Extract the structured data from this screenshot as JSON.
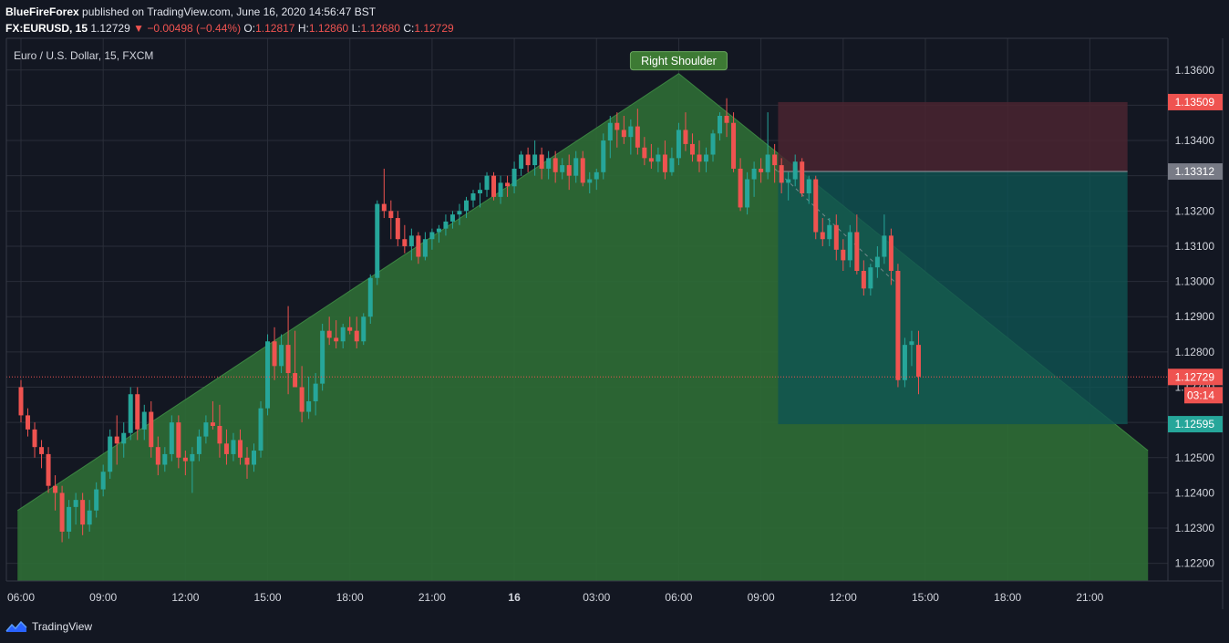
{
  "header": {
    "author": "BlueFireForex",
    "published_text": "published on TradingView.com, June 16, 2020 14:56:47 BST",
    "symbol": "FX:EURUSD, 15",
    "last": "1.12729",
    "change": "▼ −0.00498 (−0.44%)",
    "o_label": "O:",
    "o_value": "1.12817",
    "h_label": "H:",
    "h_value": "1.12860",
    "l_label": "L:",
    "l_value": "1.12680",
    "c_label": "C:",
    "c_value": "1.12729"
  },
  "footer": {
    "brand": "TradingView",
    "logo_icon": "tradingview-logo-icon"
  },
  "colors": {
    "background": "#131722",
    "up": "#26a69a",
    "down": "#ef5350",
    "pattern_fill": "#2e6b35",
    "stop_zone": "#4a2530",
    "target_zone": "#0f5452",
    "grid": "#2a2e39"
  },
  "chart_data": {
    "type": "candlestick",
    "title": "Euro / U.S. Dollar, 15, FXCM",
    "ylim": [
      1.1215,
      1.1369
    ],
    "y_ticks": [
      1.122,
      1.123,
      1.124,
      1.125,
      1.126,
      1.127,
      1.128,
      1.129,
      1.13,
      1.131,
      1.132,
      1.133,
      1.134,
      1.135,
      1.136
    ],
    "x_ticks": [
      {
        "label": "06:00",
        "bar": 0,
        "bold": false
      },
      {
        "label": "09:00",
        "bar": 12,
        "bold": false
      },
      {
        "label": "12:00",
        "bar": 24,
        "bold": false
      },
      {
        "label": "15:00",
        "bar": 36,
        "bold": false
      },
      {
        "label": "18:00",
        "bar": 48,
        "bold": false
      },
      {
        "label": "21:00",
        "bar": 60,
        "bold": false
      },
      {
        "label": "16",
        "bar": 72,
        "bold": true
      },
      {
        "label": "03:00",
        "bar": 84,
        "bold": false
      },
      {
        "label": "06:00",
        "bar": 96,
        "bold": false
      },
      {
        "label": "09:00",
        "bar": 108,
        "bold": false
      },
      {
        "label": "12:00",
        "bar": 120,
        "bold": false
      },
      {
        "label": "15:00",
        "bar": 132,
        "bold": false
      },
      {
        "label": "18:00",
        "bar": 144,
        "bold": false
      },
      {
        "label": "21:00",
        "bar": 156,
        "bold": false
      }
    ],
    "candles": [
      [
        1.127,
        1.1272,
        1.126,
        1.1262
      ],
      [
        1.1262,
        1.1264,
        1.1256,
        1.1258
      ],
      [
        1.1258,
        1.126,
        1.125,
        1.1253
      ],
      [
        1.1253,
        1.1255,
        1.1247,
        1.1251
      ],
      [
        1.1251,
        1.1253,
        1.124,
        1.1242
      ],
      [
        1.1242,
        1.1245,
        1.1235,
        1.124
      ],
      [
        1.124,
        1.1242,
        1.1226,
        1.1229
      ],
      [
        1.1229,
        1.1238,
        1.1227,
        1.1236
      ],
      [
        1.1236,
        1.124,
        1.1231,
        1.1238
      ],
      [
        1.1238,
        1.124,
        1.1228,
        1.1231
      ],
      [
        1.1231,
        1.1238,
        1.1229,
        1.1235
      ],
      [
        1.1235,
        1.1243,
        1.1233,
        1.1241
      ],
      [
        1.1241,
        1.1248,
        1.1239,
        1.1246
      ],
      [
        1.1246,
        1.1258,
        1.1244,
        1.1256
      ],
      [
        1.1256,
        1.1262,
        1.1248,
        1.1254
      ],
      [
        1.1254,
        1.126,
        1.125,
        1.1257
      ],
      [
        1.1257,
        1.127,
        1.1255,
        1.1268
      ],
      [
        1.1268,
        1.127,
        1.1255,
        1.1258
      ],
      [
        1.1258,
        1.1265,
        1.1255,
        1.1263
      ],
      [
        1.1263,
        1.1266,
        1.125,
        1.1253
      ],
      [
        1.1253,
        1.1256,
        1.1245,
        1.1248
      ],
      [
        1.1248,
        1.1253,
        1.1246,
        1.1251
      ],
      [
        1.1251,
        1.1262,
        1.1249,
        1.126
      ],
      [
        1.126,
        1.1262,
        1.1247,
        1.125
      ],
      [
        1.125,
        1.1252,
        1.1245,
        1.1249
      ],
      [
        1.1249,
        1.1253,
        1.124,
        1.1251
      ],
      [
        1.1251,
        1.1258,
        1.1249,
        1.1256
      ],
      [
        1.1256,
        1.1262,
        1.1254,
        1.126
      ],
      [
        1.126,
        1.1266,
        1.1258,
        1.1259
      ],
      [
        1.1259,
        1.1265,
        1.125,
        1.1254
      ],
      [
        1.1254,
        1.1258,
        1.1248,
        1.1251
      ],
      [
        1.1251,
        1.1257,
        1.1249,
        1.1255
      ],
      [
        1.1255,
        1.1258,
        1.1248,
        1.125
      ],
      [
        1.125,
        1.1253,
        1.1244,
        1.1248
      ],
      [
        1.1248,
        1.1254,
        1.1246,
        1.1252
      ],
      [
        1.1252,
        1.1266,
        1.125,
        1.1264
      ],
      [
        1.1264,
        1.1285,
        1.1262,
        1.1283
      ],
      [
        1.1283,
        1.1287,
        1.1272,
        1.1276
      ],
      [
        1.1276,
        1.1285,
        1.1274,
        1.1282
      ],
      [
        1.1282,
        1.1293,
        1.1268,
        1.1274
      ],
      [
        1.1274,
        1.1286,
        1.127,
        1.127
      ],
      [
        1.127,
        1.1276,
        1.126,
        1.1263
      ],
      [
        1.1263,
        1.1273,
        1.1261,
        1.1266
      ],
      [
        1.1266,
        1.1274,
        1.1262,
        1.1271
      ],
      [
        1.1271,
        1.1288,
        1.1269,
        1.1286
      ],
      [
        1.1286,
        1.129,
        1.1282,
        1.1284
      ],
      [
        1.1284,
        1.1289,
        1.1281,
        1.1283
      ],
      [
        1.1283,
        1.1288,
        1.1281,
        1.1287
      ],
      [
        1.1287,
        1.129,
        1.1285,
        1.1286
      ],
      [
        1.1286,
        1.129,
        1.1281,
        1.1283
      ],
      [
        1.1283,
        1.1291,
        1.1282,
        1.129
      ],
      [
        1.129,
        1.1302,
        1.1288,
        1.1301
      ],
      [
        1.1301,
        1.1323,
        1.1299,
        1.1322
      ],
      [
        1.1322,
        1.1332,
        1.1318,
        1.132
      ],
      [
        1.132,
        1.1323,
        1.1312,
        1.1318
      ],
      [
        1.1318,
        1.132,
        1.131,
        1.1312
      ],
      [
        1.1312,
        1.1316,
        1.1308,
        1.131
      ],
      [
        1.131,
        1.1315,
        1.1306,
        1.1313
      ],
      [
        1.1313,
        1.1314,
        1.1305,
        1.1307
      ],
      [
        1.1307,
        1.1314,
        1.1306,
        1.1312
      ],
      [
        1.1312,
        1.1315,
        1.1309,
        1.1314
      ],
      [
        1.1314,
        1.1316,
        1.1311,
        1.1315
      ],
      [
        1.1315,
        1.1319,
        1.1313,
        1.1317
      ],
      [
        1.1317,
        1.132,
        1.1315,
        1.1319
      ],
      [
        1.1319,
        1.1322,
        1.1316,
        1.132
      ],
      [
        1.132,
        1.1324,
        1.1318,
        1.1323
      ],
      [
        1.1323,
        1.1326,
        1.1321,
        1.1325
      ],
      [
        1.1325,
        1.1328,
        1.1321,
        1.1326
      ],
      [
        1.1326,
        1.1331,
        1.1324,
        1.133
      ],
      [
        1.133,
        1.1331,
        1.1323,
        1.1324
      ],
      [
        1.1324,
        1.133,
        1.1322,
        1.1328
      ],
      [
        1.1328,
        1.133,
        1.1324,
        1.1327
      ],
      [
        1.1327,
        1.1334,
        1.1325,
        1.1332
      ],
      [
        1.1332,
        1.1337,
        1.133,
        1.1336
      ],
      [
        1.1336,
        1.1338,
        1.1331,
        1.1333
      ],
      [
        1.1333,
        1.134,
        1.133,
        1.1336
      ],
      [
        1.1336,
        1.1338,
        1.1329,
        1.1332
      ],
      [
        1.1332,
        1.1337,
        1.1329,
        1.1335
      ],
      [
        1.1335,
        1.1337,
        1.1328,
        1.1331
      ],
      [
        1.1331,
        1.1335,
        1.1329,
        1.1333
      ],
      [
        1.1333,
        1.1336,
        1.1326,
        1.133
      ],
      [
        1.133,
        1.1337,
        1.1328,
        1.1335
      ],
      [
        1.1335,
        1.1337,
        1.1327,
        1.1328
      ],
      [
        1.1328,
        1.1331,
        1.1325,
        1.1329
      ],
      [
        1.1329,
        1.1332,
        1.1326,
        1.1331
      ],
      [
        1.1331,
        1.1342,
        1.1329,
        1.134
      ],
      [
        1.134,
        1.1347,
        1.1335,
        1.1345
      ],
      [
        1.1345,
        1.1348,
        1.1338,
        1.1343
      ],
      [
        1.1343,
        1.1347,
        1.1339,
        1.1341
      ],
      [
        1.1341,
        1.1346,
        1.1336,
        1.1344
      ],
      [
        1.1344,
        1.1349,
        1.1336,
        1.1338
      ],
      [
        1.1338,
        1.1341,
        1.1333,
        1.1335
      ],
      [
        1.1335,
        1.1339,
        1.1332,
        1.1334
      ],
      [
        1.1334,
        1.1338,
        1.1331,
        1.1336
      ],
      [
        1.1336,
        1.134,
        1.1329,
        1.1331
      ],
      [
        1.1331,
        1.1338,
        1.133,
        1.1335
      ],
      [
        1.1335,
        1.1345,
        1.1333,
        1.1343
      ],
      [
        1.1343,
        1.1348,
        1.1337,
        1.1339
      ],
      [
        1.1339,
        1.1342,
        1.1334,
        1.1336
      ],
      [
        1.1336,
        1.134,
        1.1331,
        1.1334
      ],
      [
        1.1334,
        1.1338,
        1.1331,
        1.1336
      ],
      [
        1.1336,
        1.1343,
        1.1334,
        1.1342
      ],
      [
        1.1342,
        1.1348,
        1.134,
        1.1347
      ],
      [
        1.1347,
        1.1352,
        1.1341,
        1.1345
      ],
      [
        1.1345,
        1.1348,
        1.1331,
        1.1332
      ],
      [
        1.1332,
        1.1335,
        1.132,
        1.1321
      ],
      [
        1.1321,
        1.1331,
        1.1319,
        1.1329
      ],
      [
        1.1329,
        1.1334,
        1.1324,
        1.1332
      ],
      [
        1.1332,
        1.1335,
        1.1328,
        1.1331
      ],
      [
        1.1331,
        1.1348,
        1.1329,
        1.1336
      ],
      [
        1.1336,
        1.1339,
        1.1328,
        1.1333
      ],
      [
        1.1333,
        1.1335,
        1.1325,
        1.1328
      ],
      [
        1.1328,
        1.1331,
        1.1323,
        1.1329
      ],
      [
        1.1329,
        1.1336,
        1.1327,
        1.1334
      ],
      [
        1.1334,
        1.1335,
        1.1324,
        1.1325
      ],
      [
        1.1325,
        1.133,
        1.1322,
        1.1329
      ],
      [
        1.1329,
        1.133,
        1.1312,
        1.1314
      ],
      [
        1.1314,
        1.1318,
        1.131,
        1.1312
      ],
      [
        1.1312,
        1.1318,
        1.131,
        1.1316
      ],
      [
        1.1316,
        1.1319,
        1.1306,
        1.1309
      ],
      [
        1.1309,
        1.1312,
        1.1303,
        1.1306
      ],
      [
        1.1306,
        1.1316,
        1.1304,
        1.1314
      ],
      [
        1.1314,
        1.1319,
        1.1302,
        1.1303
      ],
      [
        1.1303,
        1.1306,
        1.1296,
        1.1298
      ],
      [
        1.1298,
        1.1305,
        1.1296,
        1.1304
      ],
      [
        1.1304,
        1.131,
        1.1301,
        1.1307
      ],
      [
        1.1307,
        1.1319,
        1.1305,
        1.1313
      ],
      [
        1.1313,
        1.1315,
        1.1299,
        1.1303
      ],
      [
        1.1303,
        1.1305,
        1.127,
        1.1272
      ],
      [
        1.1272,
        1.1284,
        1.127,
        1.1282
      ],
      [
        1.1282,
        1.1286,
        1.1276,
        1.1283
      ],
      [
        1.1282,
        1.1286,
        1.1268,
        1.1273
      ]
    ],
    "pattern": {
      "label": "Right Shoulder",
      "points": [
        [
          -0.5,
          1.1235
        ],
        [
          96,
          1.1359
        ],
        [
          164.5,
          1.1252
        ]
      ],
      "base": 1.1215
    },
    "position": {
      "type": "short",
      "start_bar": 110.5,
      "end_bar": 161.5,
      "stop": 1.13509,
      "entry": 1.13312,
      "target": 1.12595
    },
    "projection": [
      [
        110,
        1.1332
      ],
      [
        128,
        1.1299
      ]
    ],
    "price_labels": [
      {
        "value": 1.13509,
        "text": "1.13509",
        "color": "#ef5350"
      },
      {
        "value": 1.13312,
        "text": "1.13312",
        "color": "#787b86"
      },
      {
        "value": 1.12729,
        "text": "1.12729",
        "color": "#ef5350"
      },
      {
        "value": 1.12595,
        "text": "1.12595",
        "color": "#26a69a"
      }
    ],
    "countdown": "03:14"
  }
}
